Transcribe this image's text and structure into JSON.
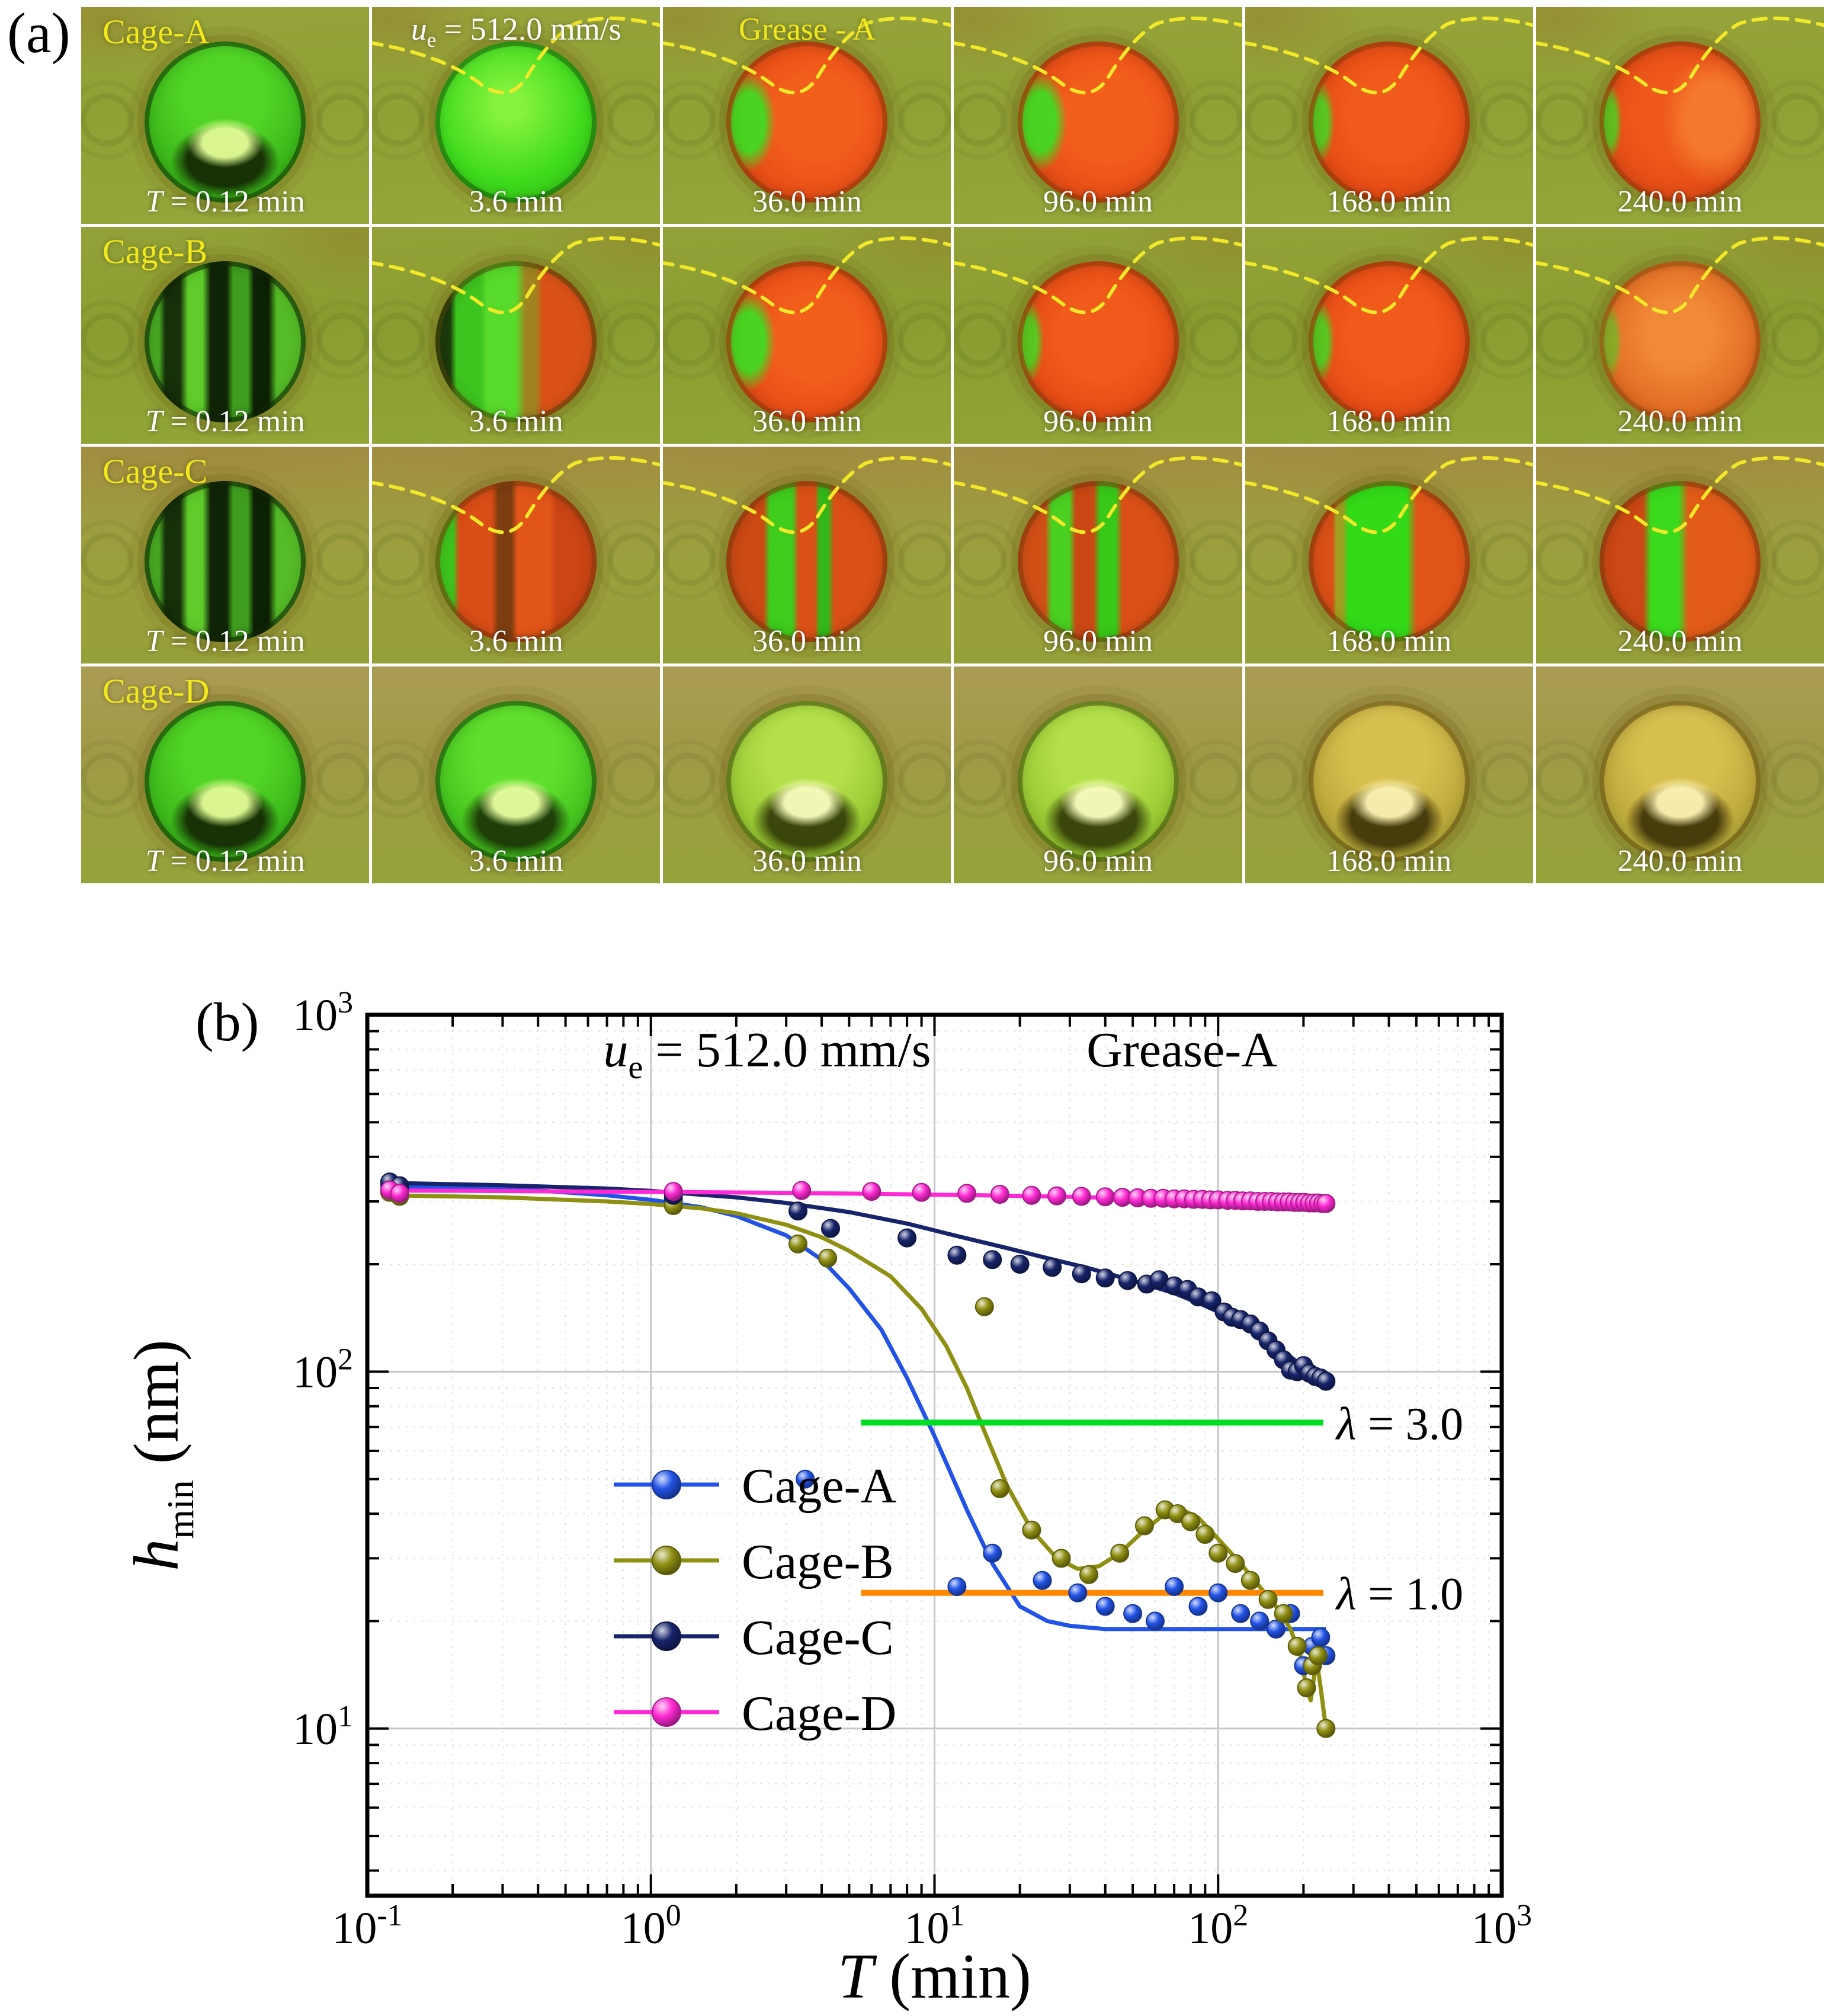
{
  "panel_a": {
    "label": "(a)",
    "colors": {
      "row_label": "#f2e81c",
      "time_label": "#ffffff",
      "dashed_line": "#f2e82a"
    },
    "ue": {
      "var": "u",
      "sub": "e",
      "rest": "= 512.0 mm/s"
    },
    "grease_label": "Grease - A",
    "t_var": "T",
    "t0_rest": "= 0.12 min",
    "times": [
      "3.6 min",
      "36.0 min",
      "96.0 min",
      "168.0 min",
      "240.0 min"
    ],
    "rows": [
      {
        "name": "Cage-A",
        "patterns": [
          "horseshoe-green-dark",
          "full-green",
          "red-left-green",
          "red-left-green",
          "red-sliver",
          "red-soft"
        ],
        "dashes": [
          0,
          1,
          1,
          1,
          1,
          1
        ]
      },
      {
        "name": "Cage-B",
        "patterns": [
          "dark-stripes",
          "green-red-split",
          "red-left-green",
          "red-sliver",
          "red-sliver",
          "orange-disc"
        ],
        "dashes": [
          0,
          1,
          1,
          1,
          1,
          1
        ]
      },
      {
        "name": "Cage-C",
        "patterns": [
          "dark-stripes",
          "stripes-c2",
          "stripes-c3",
          "stripes-c4",
          "green-center",
          "stripes-c6"
        ],
        "dashes": [
          0,
          1,
          1,
          1,
          1,
          1
        ]
      },
      {
        "name": "Cage-D",
        "patterns": [
          "horseshoe-green-dark",
          "horseshoe-green",
          "horseshoe-yellow",
          "horseshoe-yellow",
          "horseshoe-orange",
          "horseshoe-orange"
        ],
        "dashes": [
          0,
          0,
          0,
          0,
          0,
          0
        ]
      }
    ]
  },
  "panel_b": {
    "label": "(b)"
  },
  "chart_data": {
    "type": "line-scatter",
    "x_scale": "log",
    "y_scale": "log",
    "grid": "on",
    "legend_position": "inside-left",
    "title": {
      "ue_var": "u",
      "ue_sub": "e",
      "ue_rest": " = 512.0 mm/s",
      "grease": "Grease-A"
    },
    "xlabel": {
      "var": "T",
      "rest": " (min)"
    },
    "ylabel": {
      "var": "h",
      "sub": "min",
      "rest": " (nm)"
    },
    "xlim": [
      0.1,
      1000
    ],
    "ylim": [
      3.4,
      1000
    ],
    "xticks": [
      {
        "base": "10",
        "exp": "-1"
      },
      {
        "base": "10",
        "exp": "0"
      },
      {
        "base": "10",
        "exp": "1"
      },
      {
        "base": "10",
        "exp": "2"
      },
      {
        "base": "10",
        "exp": "3"
      }
    ],
    "yticks": [
      {
        "base": "10",
        "exp": "1"
      },
      {
        "base": "10",
        "exp": "2"
      },
      {
        "base": "10",
        "exp": "3"
      }
    ],
    "series": [
      {
        "name": "Cage-A",
        "color": "#2253e6",
        "line": [
          [
            0.12,
            330
          ],
          [
            0.2,
            328
          ],
          [
            0.4,
            322
          ],
          [
            0.7,
            312
          ],
          [
            1,
            303
          ],
          [
            1.5,
            289
          ],
          [
            2,
            273
          ],
          [
            3,
            241
          ],
          [
            4,
            206
          ],
          [
            5,
            171
          ],
          [
            6.5,
            131
          ],
          [
            8,
            96
          ],
          [
            10,
            66
          ],
          [
            13,
            41
          ],
          [
            16,
            29
          ],
          [
            20,
            22
          ],
          [
            25,
            20
          ],
          [
            30,
            19.4
          ],
          [
            40,
            19
          ],
          [
            60,
            19
          ],
          [
            100,
            19
          ],
          [
            150,
            19
          ],
          [
            200,
            19
          ],
          [
            240,
            19
          ]
        ],
        "points": [
          [
            0.12,
            333
          ],
          [
            0.13,
            326
          ],
          [
            1.2,
            304
          ],
          [
            3.5,
            50
          ],
          [
            12,
            25
          ],
          [
            16,
            31
          ],
          [
            24,
            26
          ],
          [
            32,
            24
          ],
          [
            40,
            22
          ],
          [
            50,
            21
          ],
          [
            60,
            20
          ],
          [
            70,
            25
          ],
          [
            85,
            22
          ],
          [
            100,
            24
          ],
          [
            120,
            21
          ],
          [
            140,
            20
          ],
          [
            160,
            19
          ],
          [
            180,
            21
          ],
          [
            200,
            15
          ],
          [
            215,
            17
          ],
          [
            230,
            18
          ],
          [
            240,
            16
          ]
        ]
      },
      {
        "name": "Cage-B",
        "color": "#8f8f12",
        "line": [
          [
            0.12,
            312
          ],
          [
            0.3,
            308
          ],
          [
            0.7,
            300
          ],
          [
            1,
            295
          ],
          [
            1.5,
            287
          ],
          [
            2,
            278
          ],
          [
            3,
            258
          ],
          [
            4,
            238
          ],
          [
            5,
            218
          ],
          [
            7,
            185
          ],
          [
            9,
            150
          ],
          [
            11,
            118
          ],
          [
            13,
            90
          ],
          [
            15,
            68
          ],
          [
            18,
            48
          ],
          [
            22,
            36
          ],
          [
            27,
            30
          ],
          [
            32,
            28
          ],
          [
            38,
            28.5
          ],
          [
            45,
            31
          ],
          [
            55,
            36
          ],
          [
            65,
            40
          ],
          [
            75,
            41
          ],
          [
            85,
            39
          ],
          [
            100,
            34
          ],
          [
            120,
            29
          ],
          [
            140,
            25
          ],
          [
            160,
            22
          ],
          [
            180,
            19
          ],
          [
            195,
            16
          ],
          [
            205,
            13
          ],
          [
            212,
            12
          ],
          [
            218,
            14
          ],
          [
            224,
            15
          ],
          [
            230,
            13
          ],
          [
            240,
            10
          ]
        ],
        "points": [
          [
            0.12,
            318
          ],
          [
            0.13,
            310
          ],
          [
            1.2,
            292
          ],
          [
            3.3,
            228
          ],
          [
            4.2,
            208
          ],
          [
            15,
            152
          ],
          [
            17,
            47
          ],
          [
            22,
            36
          ],
          [
            28,
            30
          ],
          [
            35,
            27
          ],
          [
            45,
            31
          ],
          [
            55,
            37
          ],
          [
            65,
            41
          ],
          [
            72,
            40
          ],
          [
            80,
            38
          ],
          [
            90,
            35
          ],
          [
            100,
            31
          ],
          [
            115,
            29
          ],
          [
            130,
            26
          ],
          [
            150,
            23
          ],
          [
            170,
            21
          ],
          [
            190,
            17
          ],
          [
            205,
            13
          ],
          [
            215,
            15
          ],
          [
            225,
            16
          ],
          [
            240,
            10
          ]
        ]
      },
      {
        "name": "Cage-C",
        "color": "#17246b",
        "line": [
          [
            0.12,
            338
          ],
          [
            0.3,
            333
          ],
          [
            0.7,
            326
          ],
          [
            1,
            321
          ],
          [
            2,
            308
          ],
          [
            3,
            297
          ],
          [
            5,
            280
          ],
          [
            8,
            260
          ],
          [
            12,
            240
          ],
          [
            18,
            222
          ],
          [
            25,
            208
          ],
          [
            35,
            195
          ],
          [
            50,
            180
          ],
          [
            70,
            166
          ],
          [
            90,
            153
          ],
          [
            110,
            142
          ],
          [
            130,
            132
          ],
          [
            150,
            122
          ],
          [
            175,
            112
          ],
          [
            200,
            103
          ],
          [
            220,
            97
          ],
          [
            240,
            92
          ]
        ],
        "points": [
          [
            0.12,
            340
          ],
          [
            0.13,
            332
          ],
          [
            1.2,
            312
          ],
          [
            3.3,
            282
          ],
          [
            4.3,
            252
          ],
          [
            8,
            237
          ],
          [
            12,
            212
          ],
          [
            16,
            206
          ],
          [
            20,
            200
          ],
          [
            26,
            196
          ],
          [
            33,
            188
          ],
          [
            40,
            183
          ],
          [
            48,
            180
          ],
          [
            56,
            176
          ],
          [
            62,
            181
          ],
          [
            70,
            174
          ],
          [
            78,
            170
          ],
          [
            85,
            162
          ],
          [
            95,
            158
          ],
          [
            105,
            147
          ],
          [
            112,
            142
          ],
          [
            120,
            140
          ],
          [
            130,
            136
          ],
          [
            140,
            130
          ],
          [
            150,
            122
          ],
          [
            160,
            115
          ],
          [
            170,
            108
          ],
          [
            180,
            101
          ],
          [
            190,
            100
          ],
          [
            200,
            104
          ],
          [
            210,
            99
          ],
          [
            220,
            97
          ],
          [
            230,
            96
          ],
          [
            240,
            94
          ]
        ]
      },
      {
        "name": "Cage-D",
        "color": "#ff2ad4",
        "line": [
          [
            0.12,
            322
          ],
          [
            0.5,
            320
          ],
          [
            1,
            319
          ],
          [
            3,
            317
          ],
          [
            8,
            314
          ],
          [
            15,
            312
          ],
          [
            30,
            309
          ],
          [
            50,
            306
          ],
          [
            80,
            304
          ],
          [
            120,
            301
          ],
          [
            160,
            300
          ],
          [
            200,
            298
          ],
          [
            240,
            297
          ]
        ],
        "points": [
          [
            0.12,
            323
          ],
          [
            0.13,
            316
          ],
          [
            1.2,
            320
          ],
          [
            3.4,
            322
          ],
          [
            6,
            320
          ],
          [
            9,
            318
          ],
          [
            13,
            316
          ],
          [
            17,
            314
          ],
          [
            22,
            312
          ],
          [
            27,
            311
          ],
          [
            33,
            310
          ],
          [
            40,
            309
          ],
          [
            46,
            308
          ],
          [
            52,
            307
          ],
          [
            58,
            306
          ],
          [
            64,
            306
          ],
          [
            70,
            305
          ],
          [
            76,
            305
          ],
          [
            82,
            304
          ],
          [
            88,
            304
          ],
          [
            94,
            303
          ],
          [
            100,
            303
          ],
          [
            108,
            302
          ],
          [
            115,
            302
          ],
          [
            122,
            301
          ],
          [
            130,
            301
          ],
          [
            138,
            300
          ],
          [
            146,
            300
          ],
          [
            154,
            300
          ],
          [
            162,
            299
          ],
          [
            170,
            299
          ],
          [
            178,
            299
          ],
          [
            186,
            298
          ],
          [
            194,
            298
          ],
          [
            202,
            298
          ],
          [
            210,
            297
          ],
          [
            218,
            297
          ],
          [
            226,
            297
          ],
          [
            234,
            296
          ],
          [
            240,
            296
          ]
        ]
      }
    ],
    "ref_lines": [
      {
        "label": {
          "var": "λ",
          "rest": " = 3.0"
        },
        "y": 72,
        "x1": 5.5,
        "x2": 235,
        "color": "#00dd22"
      },
      {
        "label": {
          "var": "λ",
          "rest": " = 1.0"
        },
        "y": 24,
        "x1": 5.5,
        "x2": 235,
        "color": "#ff8800"
      }
    ],
    "legend": {
      "entries": [
        "Cage-A",
        "Cage-B",
        "Cage-C",
        "Cage-D"
      ]
    }
  }
}
